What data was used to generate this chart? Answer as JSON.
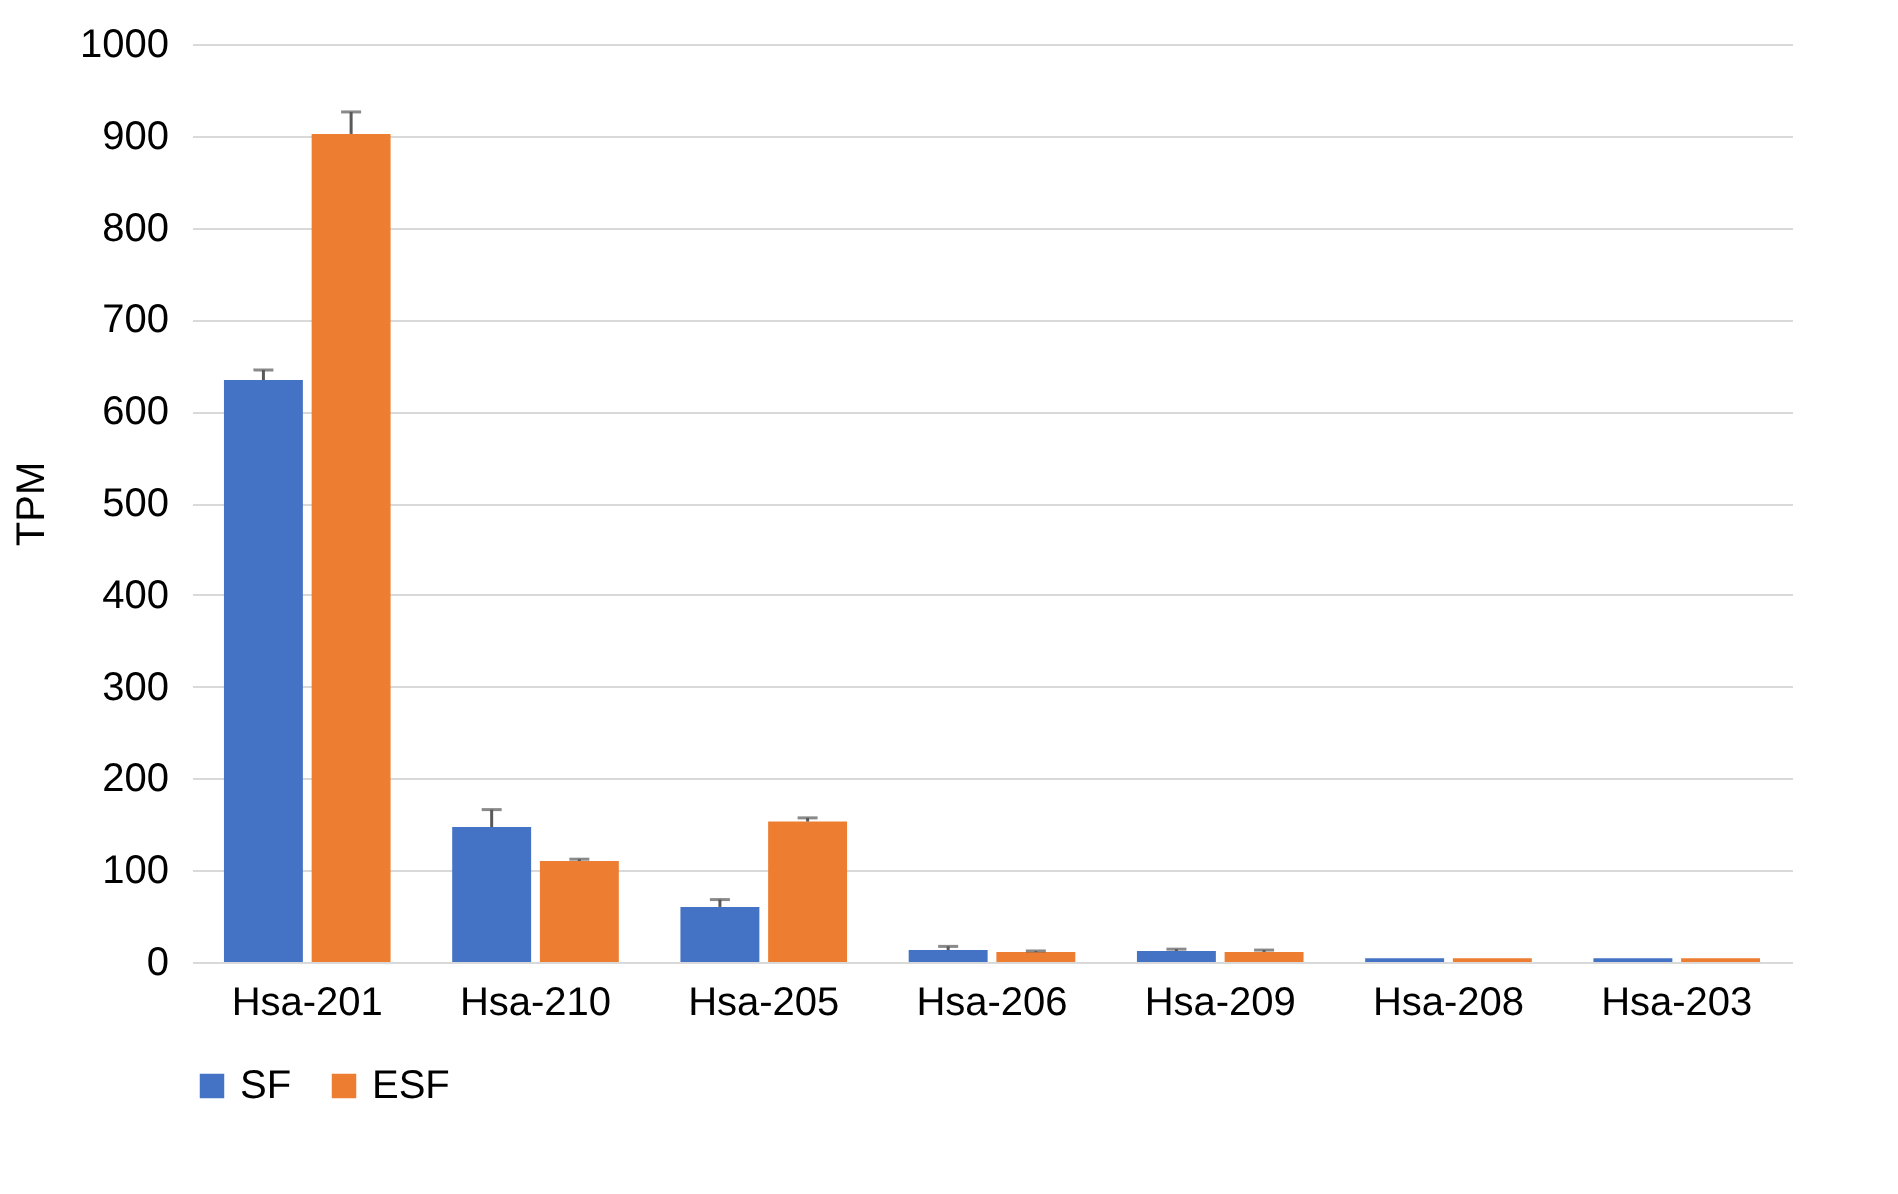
{
  "chart_data": {
    "type": "bar",
    "ylabel": "TPM",
    "categories": [
      "Hsa-201",
      "Hsa-210",
      "Hsa-205",
      "Hsa-206",
      "Hsa-209",
      "Hsa-208",
      "Hsa-203"
    ],
    "series": [
      {
        "name": "SF",
        "color": "#4472c4",
        "values": [
          634,
          147,
          60,
          13,
          12,
          4,
          4
        ],
        "errors": [
          [
            634,
            645
          ],
          [
            147,
            166
          ],
          [
            60,
            68
          ],
          [
            13,
            17
          ],
          [
            12,
            14
          ],
          null,
          null
        ]
      },
      {
        "name": "ESF",
        "color": "#ed7d31",
        "values": [
          902,
          110,
          153,
          11,
          11,
          4,
          4
        ],
        "errors": [
          [
            902,
            926
          ],
          [
            110,
            112
          ],
          [
            153,
            157
          ],
          [
            11,
            12
          ],
          [
            11,
            13
          ],
          null,
          null
        ]
      }
    ],
    "ylim": [
      0,
      1000
    ],
    "yticks": [
      0,
      100,
      200,
      300,
      400,
      500,
      600,
      700,
      800,
      900,
      1000
    ],
    "grid": "y",
    "legend": "bottom"
  }
}
